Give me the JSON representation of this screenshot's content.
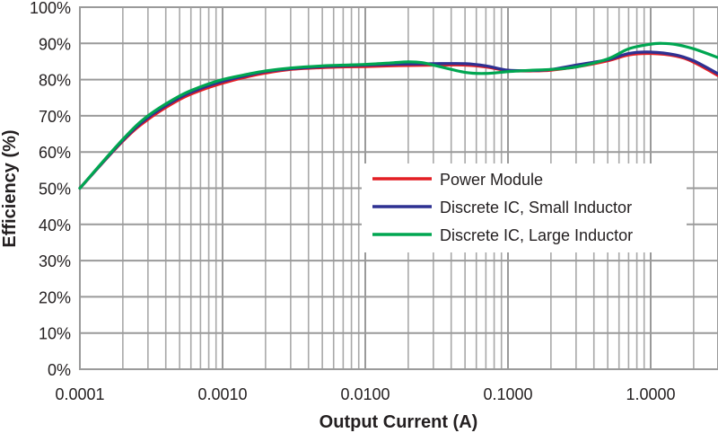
{
  "chart_data": {
    "type": "line",
    "title": "",
    "xlabel": "Output Current (A)",
    "ylabel": "Efficiency (%)",
    "x_scale": "log",
    "xlim": [
      0.0001,
      3
    ],
    "ylim": [
      0,
      100
    ],
    "grid": true,
    "legend_position": "right",
    "x_ticks": [
      {
        "value": 0.0001,
        "label": "0.0001"
      },
      {
        "value": 0.001,
        "label": "0.0010"
      },
      {
        "value": 0.01,
        "label": "0.0100"
      },
      {
        "value": 0.1,
        "label": "0.1000"
      },
      {
        "value": 1,
        "label": "1.0000"
      }
    ],
    "y_ticks": [
      {
        "value": 0,
        "label": "0%"
      },
      {
        "value": 10,
        "label": "10%"
      },
      {
        "value": 20,
        "label": "20%"
      },
      {
        "value": 30,
        "label": "30%"
      },
      {
        "value": 40,
        "label": "40%"
      },
      {
        "value": 50,
        "label": "50%"
      },
      {
        "value": 60,
        "label": "60%"
      },
      {
        "value": 70,
        "label": "70%"
      },
      {
        "value": 80,
        "label": "80%"
      },
      {
        "value": 90,
        "label": "90%"
      },
      {
        "value": 100,
        "label": "100%"
      }
    ],
    "series": [
      {
        "name": "Power Module",
        "color": "#e31e24",
        "x": [
          0.0001,
          0.0002,
          0.0003,
          0.0005,
          0.0007,
          0.001,
          0.0015,
          0.002,
          0.003,
          0.005,
          0.007,
          0.01,
          0.015,
          0.02,
          0.03,
          0.05,
          0.07,
          0.1,
          0.15,
          0.2,
          0.3,
          0.5,
          0.7,
          1,
          1.5,
          2,
          3
        ],
        "y": [
          50,
          63,
          69,
          74.5,
          77,
          79,
          80.8,
          81.8,
          82.8,
          83.3,
          83.5,
          83.6,
          83.8,
          83.9,
          84,
          84,
          83.5,
          82.5,
          82.4,
          82.6,
          83.5,
          85.2,
          86.8,
          87.2,
          86.5,
          84.8,
          81
        ]
      },
      {
        "name": "Discrete IC, Small Inductor",
        "color": "#2e3192",
        "x": [
          0.0001,
          0.0002,
          0.0003,
          0.0005,
          0.0007,
          0.001,
          0.0015,
          0.002,
          0.003,
          0.005,
          0.007,
          0.01,
          0.015,
          0.02,
          0.03,
          0.05,
          0.07,
          0.1,
          0.15,
          0.2,
          0.3,
          0.5,
          0.7,
          1,
          1.5,
          2,
          3
        ],
        "y": [
          50,
          63.2,
          69.5,
          75,
          77.5,
          79.5,
          81.2,
          82.2,
          83,
          83.6,
          83.8,
          84,
          84.2,
          84.3,
          84.4,
          84.4,
          83.8,
          82.6,
          82.5,
          82.8,
          84,
          85.5,
          87.2,
          87.6,
          86.8,
          85.2,
          81.5
        ]
      },
      {
        "name": "Discrete IC, Large Inductor",
        "color": "#00a651",
        "x": [
          0.0001,
          0.0002,
          0.0003,
          0.0005,
          0.0007,
          0.001,
          0.0015,
          0.002,
          0.003,
          0.005,
          0.007,
          0.01,
          0.015,
          0.02,
          0.025,
          0.03,
          0.05,
          0.07,
          0.1,
          0.15,
          0.2,
          0.3,
          0.5,
          0.7,
          1,
          1.2,
          1.5,
          2,
          3
        ],
        "y": [
          50,
          63.5,
          70,
          75.5,
          78,
          80,
          81.5,
          82.4,
          83.2,
          83.8,
          84,
          84.2,
          84.6,
          84.9,
          84.7,
          84,
          82,
          81.7,
          82.2,
          82.6,
          82.8,
          83.5,
          85.7,
          88.5,
          89.8,
          90,
          89.7,
          88.5,
          86
        ]
      }
    ]
  }
}
